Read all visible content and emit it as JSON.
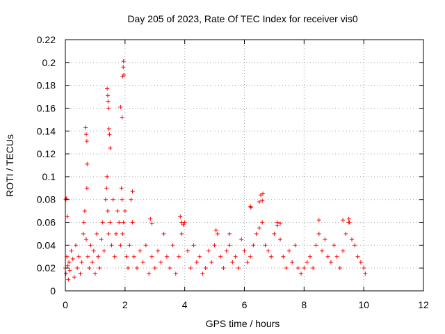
{
  "chart_data": {
    "type": "scatter",
    "title": "Day 205 of 2023, Rate Of TEC Index for receiver vis0",
    "xlabel": "GPS time / hours",
    "ylabel": "ROTI / TECUs",
    "xlim": [
      0,
      12
    ],
    "ylim": [
      0,
      0.22
    ],
    "xticks": [
      0,
      2,
      4,
      6,
      8,
      10,
      12
    ],
    "xtick_labels": [
      "0",
      "2",
      "4",
      "6",
      "8",
      "10",
      "12"
    ],
    "yticks": [
      0,
      0.02,
      0.04,
      0.06,
      0.08,
      0.1,
      0.12,
      0.14,
      0.16,
      0.18,
      0.2,
      0.22
    ],
    "ytick_labels": [
      "0",
      "0.02",
      "0.04",
      "0.06",
      "0.08",
      "0.1",
      "0.12",
      "0.14",
      "0.16",
      "0.18",
      "0.2",
      "0.22"
    ],
    "grid": true,
    "marker": "+",
    "color": "#ff0000",
    "series": [
      {
        "name": "ROTI",
        "x": [
          0.0,
          0.02,
          0.05,
          0.08,
          0.1,
          0.12,
          0.15,
          0.2,
          0.25,
          0.3,
          0.35,
          0.4,
          0.45,
          0.5,
          0.55,
          0.6,
          0.62,
          0.65,
          0.7,
          0.72,
          0.75,
          0.8,
          0.85,
          0.9,
          0.95,
          1.0,
          1.05,
          1.1,
          1.15,
          1.2,
          1.25,
          1.3,
          1.35,
          1.38,
          1.4,
          1.42,
          1.45,
          1.5,
          1.55,
          1.6,
          1.65,
          1.7,
          1.75,
          1.8,
          1.85,
          1.88,
          1.9,
          1.92,
          1.95,
          2.0,
          2.05,
          2.1,
          2.15,
          2.2,
          2.25,
          2.3,
          2.4,
          2.5,
          2.6,
          2.7,
          2.8,
          2.9,
          3.0,
          3.1,
          3.2,
          3.3,
          3.4,
          3.5,
          3.6,
          3.7,
          3.8,
          3.9,
          4.0,
          4.1,
          4.2,
          4.3,
          4.4,
          4.5,
          4.6,
          4.7,
          4.8,
          4.9,
          5.0,
          5.1,
          5.2,
          5.3,
          5.4,
          5.5,
          5.6,
          5.7,
          5.8,
          5.9,
          6.0,
          6.1,
          6.2,
          6.3,
          6.4,
          6.5,
          6.6,
          6.7,
          6.8,
          6.9,
          7.0,
          7.1,
          7.2,
          7.3,
          7.4,
          7.5,
          7.6,
          7.7,
          7.8,
          7.9,
          8.0,
          8.1,
          8.2,
          8.3,
          8.4,
          8.5,
          8.6,
          8.7,
          8.8,
          8.9,
          9.0,
          9.1,
          9.2,
          9.3,
          9.4,
          9.5,
          9.6,
          9.7,
          9.8,
          9.9,
          10.0,
          10.05,
          0.01,
          0.03,
          0.06,
          0.68,
          0.7,
          0.72,
          0.73,
          1.4,
          1.42,
          1.43,
          1.45,
          1.46,
          1.48,
          1.5,
          1.85,
          1.9,
          1.92,
          1.94,
          1.95,
          1.96,
          2.25,
          6.2,
          6.22,
          6.5,
          6.55,
          6.6,
          6.62,
          9.5,
          9.52,
          3.85,
          3.9,
          3.95,
          2.85,
          2.9,
          5.05,
          5.5,
          7.1,
          7.2,
          8.5,
          9.3
        ],
        "y": [
          0.02,
          0.015,
          0.03,
          0.022,
          0.01,
          0.025,
          0.018,
          0.035,
          0.028,
          0.012,
          0.04,
          0.02,
          0.03,
          0.015,
          0.025,
          0.05,
          0.06,
          0.07,
          0.045,
          0.09,
          0.03,
          0.02,
          0.04,
          0.025,
          0.035,
          0.015,
          0.05,
          0.03,
          0.02,
          0.045,
          0.06,
          0.035,
          0.08,
          0.09,
          0.1,
          0.07,
          0.05,
          0.06,
          0.04,
          0.08,
          0.03,
          0.05,
          0.07,
          0.06,
          0.04,
          0.09,
          0.08,
          0.05,
          0.06,
          0.07,
          0.03,
          0.02,
          0.04,
          0.08,
          0.06,
          0.03,
          0.02,
          0.035,
          0.025,
          0.04,
          0.015,
          0.03,
          0.02,
          0.035,
          0.025,
          0.05,
          0.03,
          0.02,
          0.04,
          0.015,
          0.03,
          0.05,
          0.06,
          0.035,
          0.02,
          0.04,
          0.025,
          0.03,
          0.015,
          0.02,
          0.035,
          0.025,
          0.04,
          0.05,
          0.03,
          0.02,
          0.035,
          0.04,
          0.025,
          0.03,
          0.02,
          0.045,
          0.035,
          0.025,
          0.03,
          0.04,
          0.05,
          0.055,
          0.06,
          0.04,
          0.035,
          0.03,
          0.05,
          0.06,
          0.045,
          0.03,
          0.02,
          0.035,
          0.025,
          0.04,
          0.02,
          0.015,
          0.02,
          0.025,
          0.03,
          0.02,
          0.04,
          0.05,
          0.035,
          0.045,
          0.03,
          0.025,
          0.04,
          0.03,
          0.02,
          0.035,
          0.05,
          0.06,
          0.045,
          0.04,
          0.03,
          0.025,
          0.02,
          0.015,
          0.08,
          0.081,
          0.065,
          0.143,
          0.137,
          0.131,
          0.111,
          0.177,
          0.171,
          0.166,
          0.16,
          0.142,
          0.137,
          0.125,
          0.161,
          0.152,
          0.188,
          0.196,
          0.201,
          0.189,
          0.087,
          0.074,
          0.073,
          0.078,
          0.084,
          0.079,
          0.085,
          0.063,
          0.06,
          0.065,
          0.06,
          0.058,
          0.063,
          0.059,
          0.053,
          0.05,
          0.057,
          0.059,
          0.062,
          0.062
        ]
      }
    ]
  }
}
